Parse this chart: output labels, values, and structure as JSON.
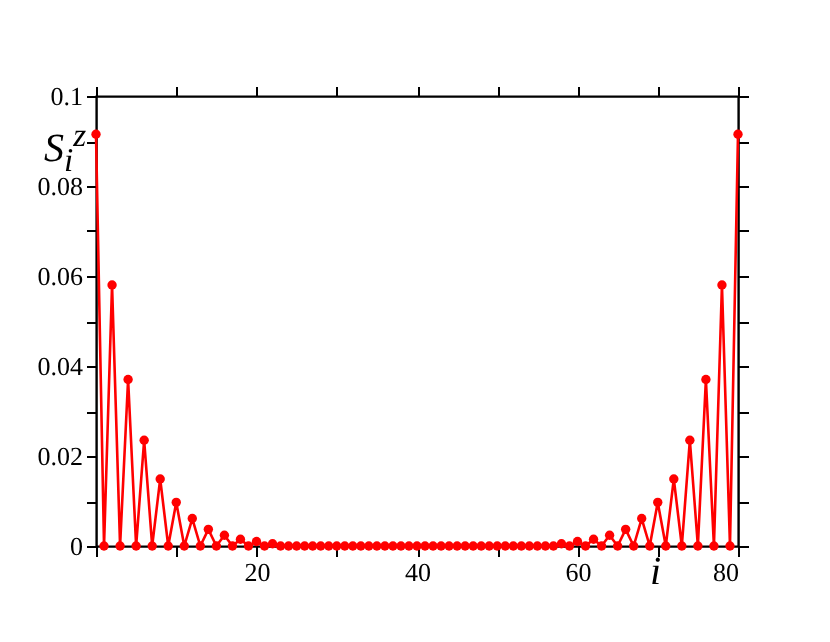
{
  "chart_data": {
    "type": "line",
    "xlabel": "i",
    "ylabel": "S$_{i}$$^{z}$",
    "marker": "circle",
    "line_style": "solid",
    "x": [
      0,
      1,
      2,
      3,
      4,
      5,
      6,
      7,
      8,
      9,
      10,
      11,
      12,
      13,
      14,
      15,
      16,
      17,
      18,
      19,
      20,
      21,
      22,
      23,
      24,
      25,
      26,
      27,
      28,
      29,
      30,
      31,
      32,
      33,
      34,
      35,
      36,
      37,
      38,
      39,
      40,
      41,
      42,
      43,
      44,
      45,
      46,
      47,
      48,
      49,
      50,
      51,
      52,
      53,
      54,
      55,
      56,
      57,
      58,
      59,
      60,
      61,
      62,
      63,
      64,
      65,
      66,
      67,
      68,
      69,
      70,
      71,
      72,
      73,
      74,
      75,
      76,
      77,
      78,
      79,
      80
    ],
    "series": [
      {
        "color": "#ff0000",
        "values": [
          0.0915,
          0,
          0.058,
          0,
          0.037,
          0,
          0.0235,
          0,
          0.0149,
          0,
          0.0097,
          0,
          0.0061,
          0,
          0.0037,
          0,
          0.0024,
          0,
          0.0015,
          0,
          0.001,
          0,
          0.0005,
          0,
          0,
          0,
          0,
          0,
          0,
          0,
          0,
          0,
          0,
          0,
          0,
          0,
          0,
          0,
          0,
          0,
          0,
          0,
          0,
          0,
          0,
          0,
          0,
          0,
          0,
          0,
          0,
          0,
          0,
          0,
          0,
          0,
          0,
          0,
          0.0005,
          0,
          0.001,
          0,
          0.0015,
          0,
          0.0024,
          0,
          0.0037,
          0,
          0.0061,
          0,
          0.0097,
          0,
          0.0149,
          0,
          0.0235,
          0,
          0.037,
          0,
          0.058,
          0,
          0.0915
        ]
      }
    ],
    "xlim": [
      0,
      80
    ],
    "xticks": [
      {
        "value": 0,
        "label": null
      },
      {
        "value": 10,
        "label": null
      },
      20,
      {
        "value": 30,
        "label": null
      },
      40,
      {
        "value": 50,
        "label": null
      },
      60,
      {
        "value": 70,
        "label": null
      },
      80
    ],
    "ylim": [
      0,
      0.1
    ],
    "yticks": [
      0,
      {
        "value": 0.01,
        "label": null
      },
      0.02,
      {
        "value": 0.03,
        "label": null
      },
      0.04,
      {
        "value": 0.05,
        "label": null
      },
      0.06,
      {
        "value": 0.07,
        "label": null
      },
      0.08,
      {
        "value": 0.09,
        "label": null
      },
      0.1
    ]
  }
}
